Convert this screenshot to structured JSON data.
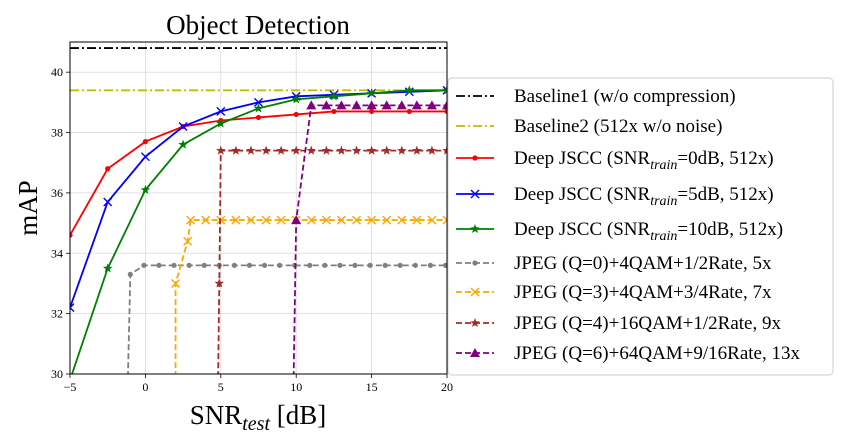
{
  "chart_data": {
    "type": "line",
    "title": "Object Detection",
    "xlabel": {
      "main": "SNR",
      "sub": "test",
      "suffix": " [dB]"
    },
    "ylabel": "mAP",
    "xlim": [
      -5,
      20
    ],
    "ylim": [
      30,
      41
    ],
    "xticks": [
      -5,
      0,
      5,
      10,
      15,
      20
    ],
    "xtick_labels": [
      "−5",
      "0",
      "5",
      "10",
      "15",
      "20"
    ],
    "yticks": [
      30,
      32,
      34,
      36,
      38,
      40
    ],
    "ytick_labels": [
      "30",
      "32",
      "34",
      "36",
      "38",
      "40"
    ],
    "grid": true,
    "legend_placement": "right",
    "series": [
      {
        "name": "Baseline1 (w/o compression)",
        "color": "#000000",
        "dash": "dashdot",
        "marker": "none",
        "x": [
          -5,
          20
        ],
        "y": [
          40.8,
          40.8
        ]
      },
      {
        "name": "Baseline2 (512x w/o noise)",
        "color": "#bfbf00",
        "dash": "dashdot",
        "marker": "none",
        "x": [
          -5,
          20
        ],
        "y": [
          39.4,
          39.4
        ]
      },
      {
        "name": "Deep JSCC (SNR",
        "name_sub": "train",
        "name_suffix": "=0dB, 512x)",
        "color": "#ff0000",
        "dash": "solid",
        "marker": "dot",
        "x": [
          -5,
          -2.5,
          0,
          2.5,
          5,
          7.5,
          10,
          12.5,
          15,
          17.5,
          20
        ],
        "y": [
          34.6,
          36.8,
          37.7,
          38.2,
          38.4,
          38.5,
          38.6,
          38.7,
          38.7,
          38.7,
          38.7
        ]
      },
      {
        "name": "Deep JSCC (SNR",
        "name_sub": "train",
        "name_suffix": "=5dB, 512x)",
        "color": "#0000ff",
        "dash": "solid",
        "marker": "x",
        "x": [
          -5,
          -2.5,
          0,
          2.5,
          5,
          7.5,
          10,
          12.5,
          15,
          17.5,
          20
        ],
        "y": [
          32.2,
          35.7,
          37.2,
          38.2,
          38.7,
          39.0,
          39.2,
          39.25,
          39.3,
          39.35,
          39.4
        ]
      },
      {
        "name": "Deep JSCC (SNR",
        "name_sub": "train",
        "name_suffix": "=10dB, 512x)",
        "color": "#008000",
        "dash": "solid",
        "marker": "star",
        "x": [
          -5,
          -2.5,
          0,
          2.5,
          5,
          7.5,
          10,
          12.5,
          15,
          17.5,
          20
        ],
        "y": [
          29.8,
          33.5,
          36.1,
          37.6,
          38.3,
          38.8,
          39.1,
          39.2,
          39.3,
          39.4,
          39.4
        ]
      },
      {
        "name": "JPEG (Q=0)+4QAM+1/2Rate, 5x",
        "color": "#808080",
        "dash": "dashed",
        "marker": "dot",
        "x": [
          -1.2,
          -1.0,
          -0.1,
          0.9,
          1.9,
          2.9,
          3.9,
          4.9,
          5.9,
          6.9,
          7.9,
          8.9,
          9.9,
          10.9,
          11.9,
          12.9,
          13.9,
          14.9,
          15.9,
          16.9,
          17.9,
          18.9,
          19.9
        ],
        "y": [
          29.0,
          33.3,
          33.6,
          33.6,
          33.6,
          33.6,
          33.6,
          33.6,
          33.6,
          33.6,
          33.6,
          33.6,
          33.6,
          33.6,
          33.6,
          33.6,
          33.6,
          33.6,
          33.6,
          33.6,
          33.6,
          33.6,
          33.6
        ]
      },
      {
        "name": "JPEG (Q=3)+4QAM+3/4Rate, 7x",
        "color": "#ffa500",
        "dash": "dashed",
        "marker": "x",
        "x": [
          2.0,
          2.0,
          2.8,
          3.0,
          4.0,
          5.0,
          6.0,
          7.0,
          8.0,
          9.0,
          10.0,
          11.0,
          12.0,
          13.0,
          14.0,
          15.0,
          16.0,
          17.0,
          18.0,
          19.0,
          20.0
        ],
        "y": [
          29.0,
          33.0,
          34.4,
          35.1,
          35.1,
          35.1,
          35.1,
          35.1,
          35.1,
          35.1,
          35.1,
          35.1,
          35.1,
          35.1,
          35.1,
          35.1,
          35.1,
          35.1,
          35.1,
          35.1,
          35.1
        ]
      },
      {
        "name": "JPEG (Q=4)+16QAM+1/2Rate, 9x",
        "color": "#a52a2a",
        "dash": "dashed",
        "marker": "star",
        "x": [
          4.8,
          4.9,
          5.0,
          6.0,
          7.0,
          8.0,
          9.0,
          10.0,
          11.0,
          12.0,
          13.0,
          14.0,
          15.0,
          16.0,
          17.0,
          18.0,
          19.0,
          20.0
        ],
        "y": [
          29.0,
          33.0,
          37.4,
          37.4,
          37.4,
          37.4,
          37.4,
          37.4,
          37.4,
          37.4,
          37.4,
          37.4,
          37.4,
          37.4,
          37.4,
          37.4,
          37.4,
          37.4
        ]
      },
      {
        "name": "JPEG (Q=6)+64QAM+9/16Rate, 13x",
        "color": "#800080",
        "dash": "dashed",
        "marker": "triangle",
        "x": [
          9.8,
          10.0,
          11.0,
          12.0,
          13.0,
          14.0,
          15.0,
          16.0,
          17.0,
          18.0,
          19.0,
          20.0
        ],
        "y": [
          29.0,
          35.1,
          38.9,
          38.9,
          38.9,
          38.9,
          38.9,
          38.9,
          38.9,
          38.9,
          38.9,
          38.9
        ]
      }
    ]
  }
}
